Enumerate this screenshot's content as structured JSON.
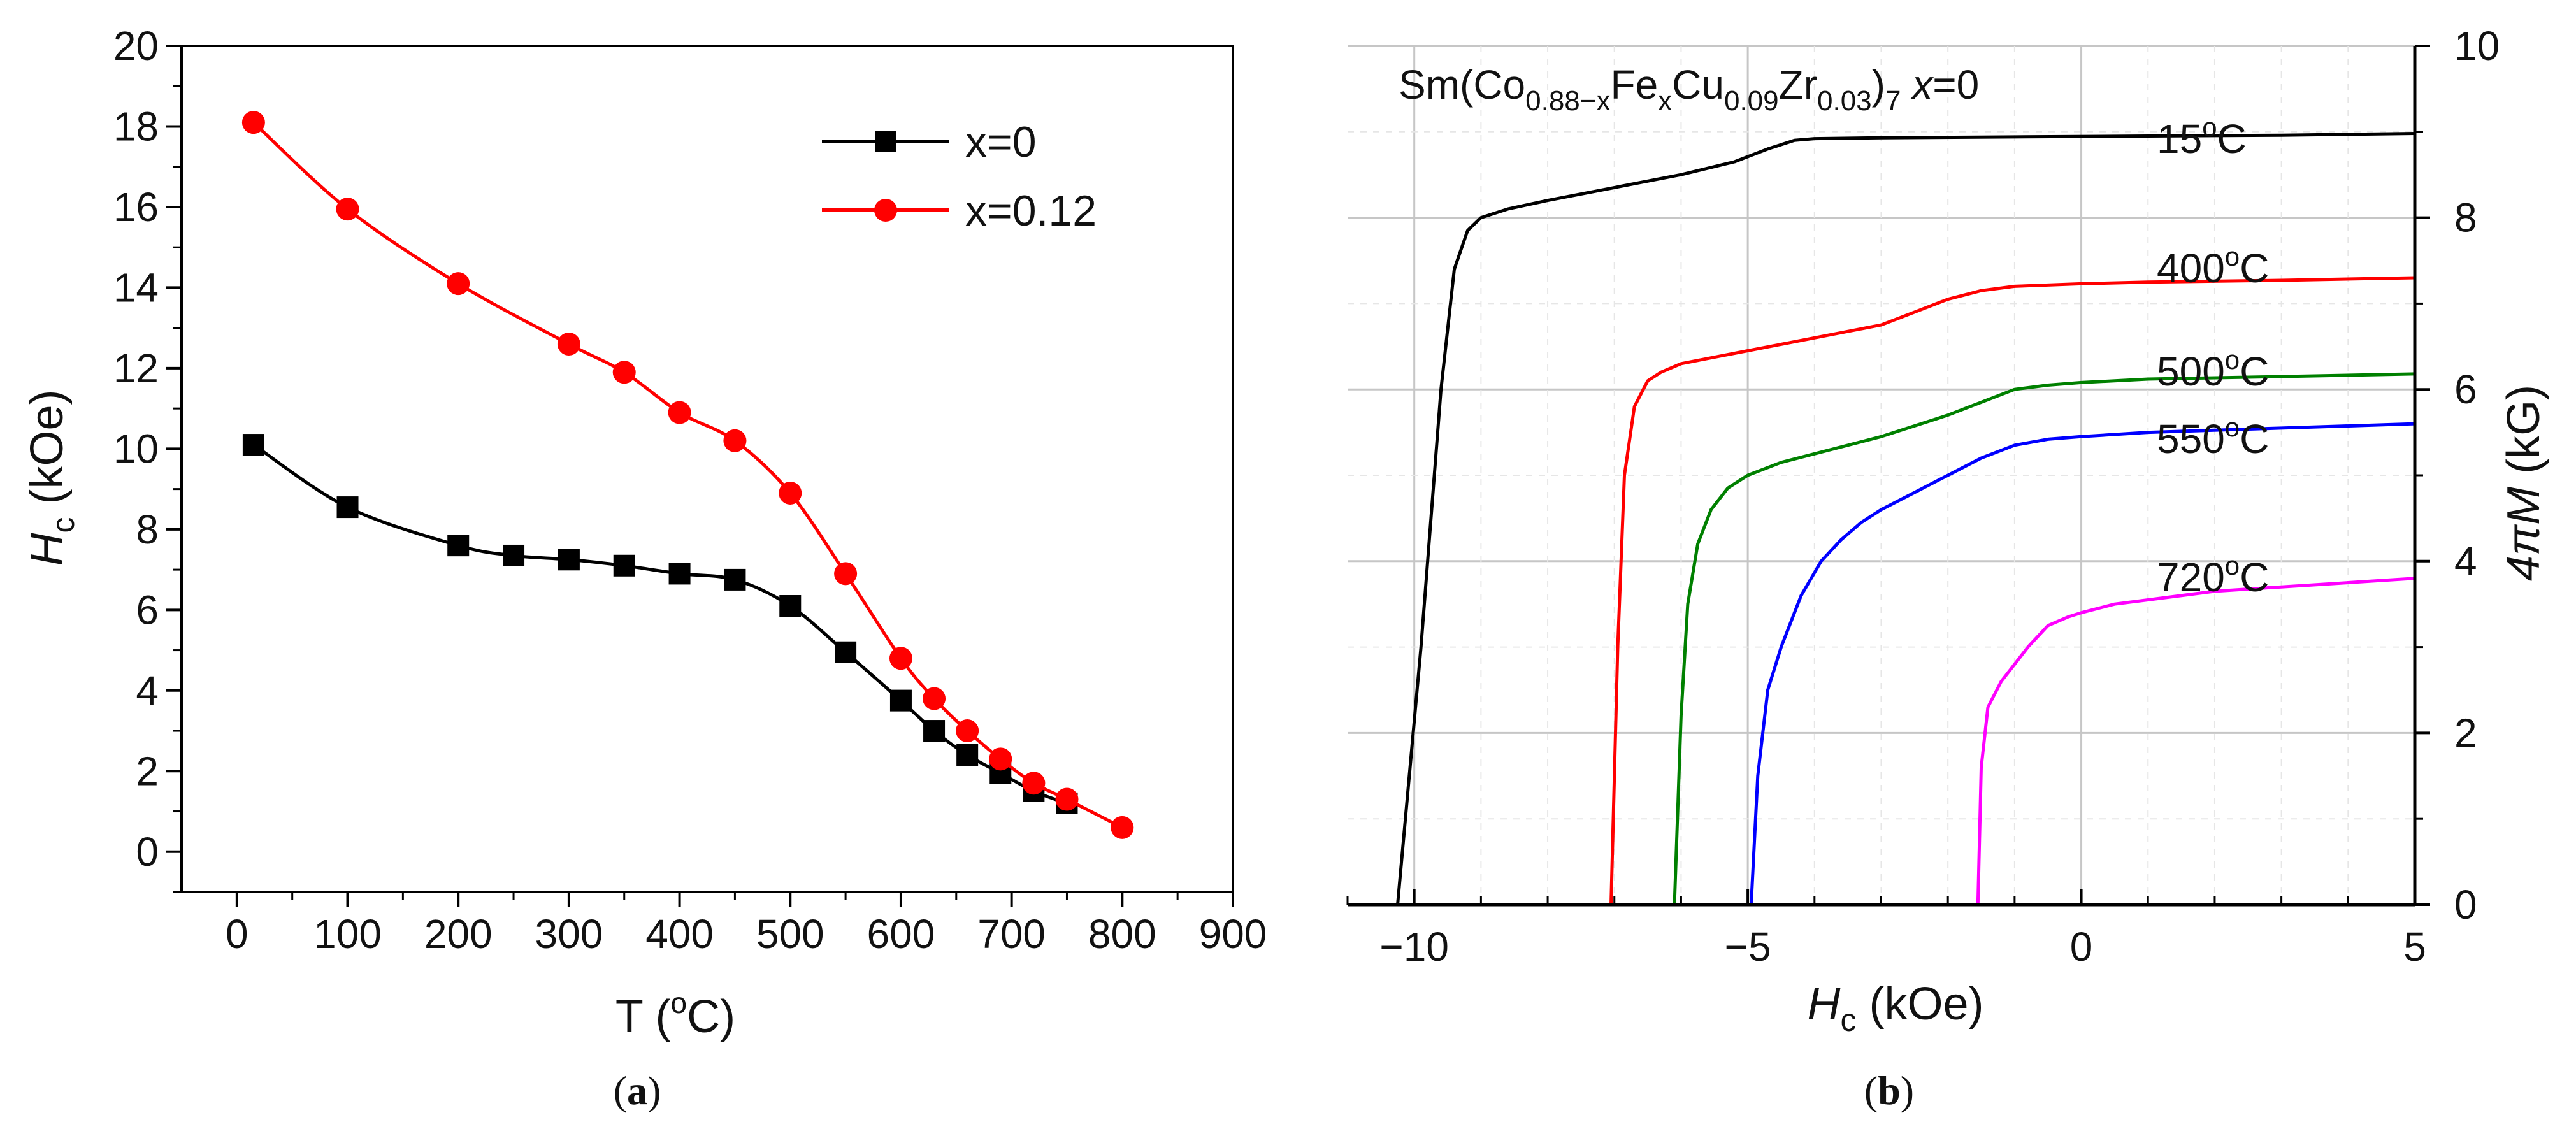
{
  "chart_data": [
    {
      "type": "line",
      "panel_label_prefix": "(",
      "panel_label_letter": "a",
      "panel_label_suffix": ")",
      "xlabel": "T (",
      "xlabel_sup": "o",
      "xlabel_suffix": "C)",
      "ylabel_main": "H",
      "ylabel_sub": "c",
      "ylabel_suffix": " (kOe)",
      "xlim": [
        -50,
        900
      ],
      "ylim": [
        -1,
        20
      ],
      "xticks": [
        0,
        100,
        200,
        300,
        400,
        500,
        600,
        700,
        800,
        900
      ],
      "yticks": [
        0,
        2,
        4,
        6,
        8,
        10,
        12,
        14,
        16,
        18,
        20
      ],
      "legend_position": "top-right",
      "series": [
        {
          "name": "x=0",
          "color": "#000000",
          "marker": "square",
          "x": [
            15,
            100,
            200,
            250,
            300,
            350,
            400,
            450,
            500,
            550,
            600,
            630,
            660,
            690,
            720,
            750
          ],
          "y": [
            10.1,
            8.55,
            7.6,
            7.35,
            7.25,
            7.1,
            6.9,
            6.75,
            6.1,
            4.95,
            3.75,
            3.0,
            2.4,
            1.95,
            1.5,
            1.2
          ]
        },
        {
          "name": "x=0.12",
          "color": "#ff0000",
          "marker": "circle",
          "x": [
            15,
            100,
            200,
            300,
            350,
            400,
            450,
            500,
            550,
            600,
            630,
            660,
            690,
            720,
            750,
            800
          ],
          "y": [
            18.1,
            15.95,
            14.1,
            12.6,
            11.9,
            10.9,
            10.2,
            8.9,
            6.9,
            4.8,
            3.8,
            3.0,
            2.3,
            1.7,
            1.3,
            0.6
          ]
        }
      ]
    },
    {
      "type": "line",
      "panel_label_prefix": "(",
      "panel_label_letter": "b",
      "panel_label_suffix": ")",
      "xlabel_main": "H",
      "xlabel_sub": "c",
      "xlabel_suffix": " (kOe)",
      "ylabel_main": "4πM",
      "ylabel_suffix": " (kG)",
      "xlim": [
        -11,
        5
      ],
      "ylim": [
        0,
        10
      ],
      "xticks": [
        -10,
        -5,
        0,
        5
      ],
      "yticks": [
        0,
        2,
        4,
        6,
        8,
        10
      ],
      "grid": true,
      "formula": {
        "p1": "Sm(Co",
        "s1": "0.88−x",
        "p2": "Fe",
        "s2": "x",
        "p3": "Cu",
        "s3": "0.09",
        "p4": "Zr",
        "s4": "0.03",
        "p5": ")",
        "s5": "7",
        "p6": " x",
        "p7": "=0"
      },
      "series": [
        {
          "name": "15°C",
          "label_value": "15",
          "label_sup": "o",
          "label_unit": "C",
          "color": "#000000",
          "x": [
            -10.25,
            -9.9,
            -9.6,
            -9.4,
            -9.2,
            -9.0,
            -8.6,
            -8.0,
            -7.0,
            -6.0,
            -5.2,
            -4.7,
            -4.3,
            -4.0,
            -3.0,
            -1.0,
            1.0,
            3.0,
            5.0
          ],
          "y": [
            0,
            3.0,
            6.0,
            7.4,
            7.85,
            8.0,
            8.1,
            8.2,
            8.35,
            8.5,
            8.65,
            8.8,
            8.9,
            8.92,
            8.93,
            8.94,
            8.95,
            8.96,
            8.98
          ]
        },
        {
          "name": "400°C",
          "label_value": "400",
          "label_sup": "o",
          "label_unit": "C",
          "color": "#ff0000",
          "x": [
            -7.05,
            -6.95,
            -6.85,
            -6.7,
            -6.5,
            -6.3,
            -6.0,
            -5.0,
            -4.0,
            -3.0,
            -2.5,
            -2.0,
            -1.5,
            -1.0,
            0.0,
            1.0,
            3.0,
            5.0
          ],
          "y": [
            0,
            3.0,
            5.0,
            5.8,
            6.1,
            6.2,
            6.3,
            6.45,
            6.6,
            6.75,
            6.9,
            7.05,
            7.15,
            7.2,
            7.23,
            7.25,
            7.27,
            7.3
          ]
        },
        {
          "name": "500°C",
          "label_value": "500",
          "label_sup": "o",
          "label_unit": "C",
          "color": "#008000",
          "x": [
            -6.1,
            -6.0,
            -5.9,
            -5.75,
            -5.55,
            -5.3,
            -5.0,
            -4.5,
            -4.0,
            -3.0,
            -2.0,
            -1.5,
            -1.0,
            -0.5,
            0.0,
            1.0,
            3.0,
            5.0
          ],
          "y": [
            0,
            2.2,
            3.5,
            4.2,
            4.6,
            4.85,
            5.0,
            5.15,
            5.25,
            5.45,
            5.7,
            5.85,
            6.0,
            6.05,
            6.08,
            6.12,
            6.15,
            6.18
          ]
        },
        {
          "name": "550°C",
          "label_value": "550",
          "label_sup": "o",
          "label_unit": "C",
          "color": "#0000ff",
          "x": [
            -4.95,
            -4.85,
            -4.7,
            -4.5,
            -4.2,
            -3.9,
            -3.6,
            -3.3,
            -3.0,
            -2.5,
            -2.0,
            -1.5,
            -1.0,
            -0.5,
            0.0,
            1.0,
            3.0,
            5.0
          ],
          "y": [
            0,
            1.5,
            2.5,
            3.0,
            3.6,
            4.0,
            4.25,
            4.45,
            4.6,
            4.8,
            5.0,
            5.2,
            5.35,
            5.42,
            5.45,
            5.5,
            5.55,
            5.6
          ]
        },
        {
          "name": "720°C",
          "label_value": "720",
          "label_sup": "o",
          "label_unit": "C",
          "color": "#ff00ff",
          "x": [
            -1.55,
            -1.5,
            -1.4,
            -1.2,
            -1.0,
            -0.8,
            -0.5,
            -0.2,
            0.0,
            0.5,
            1.0,
            2.0,
            3.0,
            5.0
          ],
          "y": [
            0,
            1.6,
            2.3,
            2.6,
            2.8,
            3.0,
            3.25,
            3.35,
            3.4,
            3.5,
            3.55,
            3.65,
            3.7,
            3.8
          ]
        }
      ]
    }
  ]
}
